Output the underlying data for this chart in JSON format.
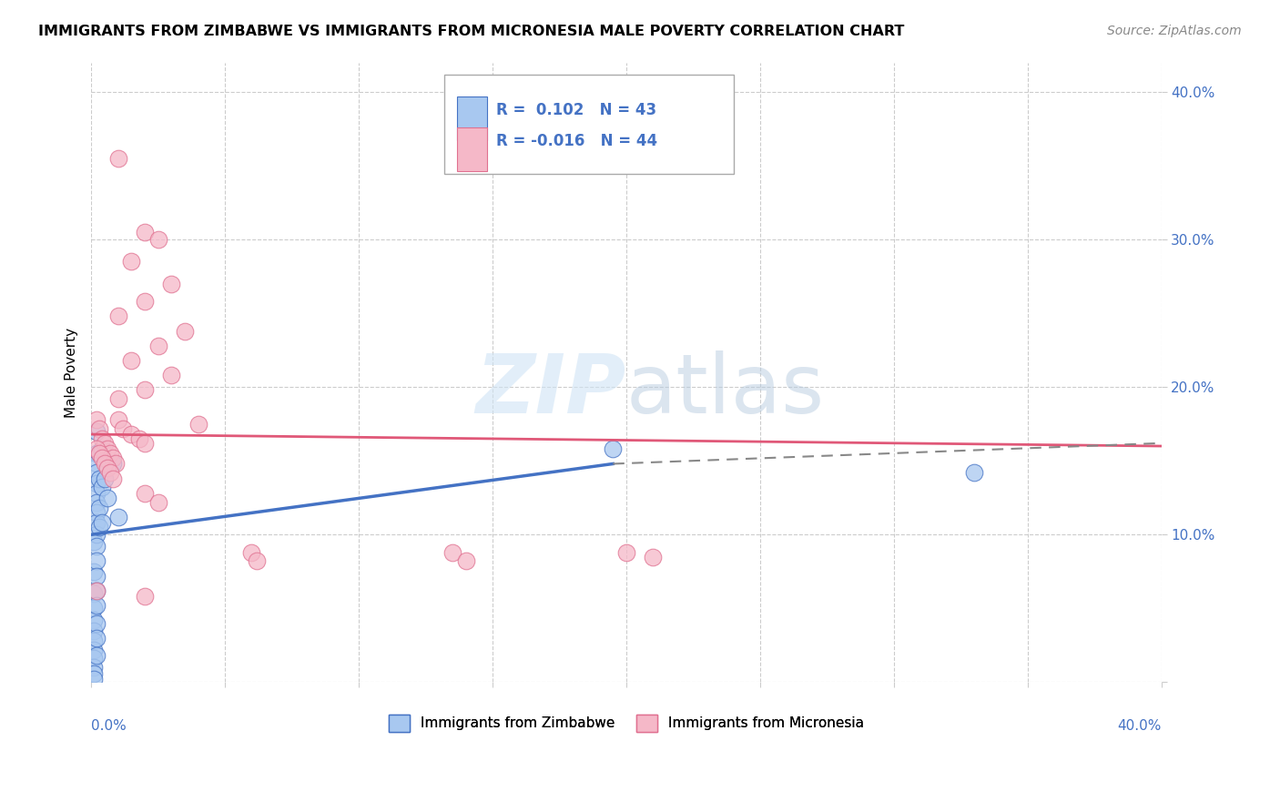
{
  "title": "IMMIGRANTS FROM ZIMBABWE VS IMMIGRANTS FROM MICRONESIA MALE POVERTY CORRELATION CHART",
  "source": "Source: ZipAtlas.com",
  "ylabel": "Male Poverty",
  "xlim": [
    0.0,
    0.4
  ],
  "ylim": [
    0.0,
    0.42
  ],
  "legend_R_zimbabwe": "0.102",
  "legend_N_zimbabwe": "43",
  "legend_R_micronesia": "-0.016",
  "legend_N_micronesia": "44",
  "color_zimbabwe_fill": "#a8c8f0",
  "color_zimbabwe_edge": "#4472c4",
  "color_micronesia_fill": "#f5b8c8",
  "color_micronesia_edge": "#e07090",
  "color_blue_text": "#4472c4",
  "color_pink_line": "#e05878",
  "color_grid": "#cccccc",
  "zimbabwe_points": [
    [
      0.001,
      0.095
    ],
    [
      0.001,
      0.075
    ],
    [
      0.001,
      0.06
    ],
    [
      0.001,
      0.05
    ],
    [
      0.001,
      0.042
    ],
    [
      0.001,
      0.035
    ],
    [
      0.001,
      0.028
    ],
    [
      0.001,
      0.022
    ],
    [
      0.001,
      0.016
    ],
    [
      0.001,
      0.01
    ],
    [
      0.001,
      0.006
    ],
    [
      0.001,
      0.002
    ],
    [
      0.002,
      0.17
    ],
    [
      0.002,
      0.155
    ],
    [
      0.002,
      0.148
    ],
    [
      0.002,
      0.142
    ],
    [
      0.002,
      0.135
    ],
    [
      0.002,
      0.128
    ],
    [
      0.002,
      0.122
    ],
    [
      0.002,
      0.115
    ],
    [
      0.002,
      0.108
    ],
    [
      0.002,
      0.1
    ],
    [
      0.002,
      0.092
    ],
    [
      0.002,
      0.082
    ],
    [
      0.002,
      0.072
    ],
    [
      0.002,
      0.062
    ],
    [
      0.002,
      0.052
    ],
    [
      0.002,
      0.04
    ],
    [
      0.002,
      0.03
    ],
    [
      0.002,
      0.018
    ],
    [
      0.003,
      0.155
    ],
    [
      0.003,
      0.138
    ],
    [
      0.003,
      0.118
    ],
    [
      0.003,
      0.105
    ],
    [
      0.004,
      0.158
    ],
    [
      0.004,
      0.132
    ],
    [
      0.004,
      0.108
    ],
    [
      0.005,
      0.138
    ],
    [
      0.006,
      0.125
    ],
    [
      0.008,
      0.148
    ],
    [
      0.01,
      0.112
    ],
    [
      0.195,
      0.158
    ],
    [
      0.33,
      0.142
    ]
  ],
  "micronesia_points": [
    [
      0.01,
      0.355
    ],
    [
      0.02,
      0.305
    ],
    [
      0.025,
      0.3
    ],
    [
      0.015,
      0.285
    ],
    [
      0.03,
      0.27
    ],
    [
      0.02,
      0.258
    ],
    [
      0.01,
      0.248
    ],
    [
      0.035,
      0.238
    ],
    [
      0.025,
      0.228
    ],
    [
      0.015,
      0.218
    ],
    [
      0.03,
      0.208
    ],
    [
      0.02,
      0.198
    ],
    [
      0.01,
      0.192
    ],
    [
      0.04,
      0.175
    ],
    [
      0.002,
      0.178
    ],
    [
      0.003,
      0.172
    ],
    [
      0.004,
      0.165
    ],
    [
      0.005,
      0.162
    ],
    [
      0.006,
      0.158
    ],
    [
      0.007,
      0.155
    ],
    [
      0.008,
      0.152
    ],
    [
      0.009,
      0.148
    ],
    [
      0.01,
      0.178
    ],
    [
      0.012,
      0.172
    ],
    [
      0.015,
      0.168
    ],
    [
      0.018,
      0.165
    ],
    [
      0.02,
      0.162
    ],
    [
      0.002,
      0.158
    ],
    [
      0.003,
      0.155
    ],
    [
      0.004,
      0.152
    ],
    [
      0.005,
      0.148
    ],
    [
      0.006,
      0.145
    ],
    [
      0.007,
      0.142
    ],
    [
      0.008,
      0.138
    ],
    [
      0.02,
      0.128
    ],
    [
      0.025,
      0.122
    ],
    [
      0.2,
      0.088
    ],
    [
      0.21,
      0.085
    ],
    [
      0.135,
      0.088
    ],
    [
      0.14,
      0.082
    ],
    [
      0.06,
      0.088
    ],
    [
      0.062,
      0.082
    ],
    [
      0.002,
      0.062
    ],
    [
      0.02,
      0.058
    ]
  ],
  "zimbabwe_trend": [
    0.0,
    0.1,
    0.195,
    0.148
  ],
  "micronesia_trend_full": [
    0.0,
    0.168,
    0.4,
    0.16
  ],
  "dashed_ext": [
    0.195,
    0.148,
    0.4,
    0.162
  ]
}
